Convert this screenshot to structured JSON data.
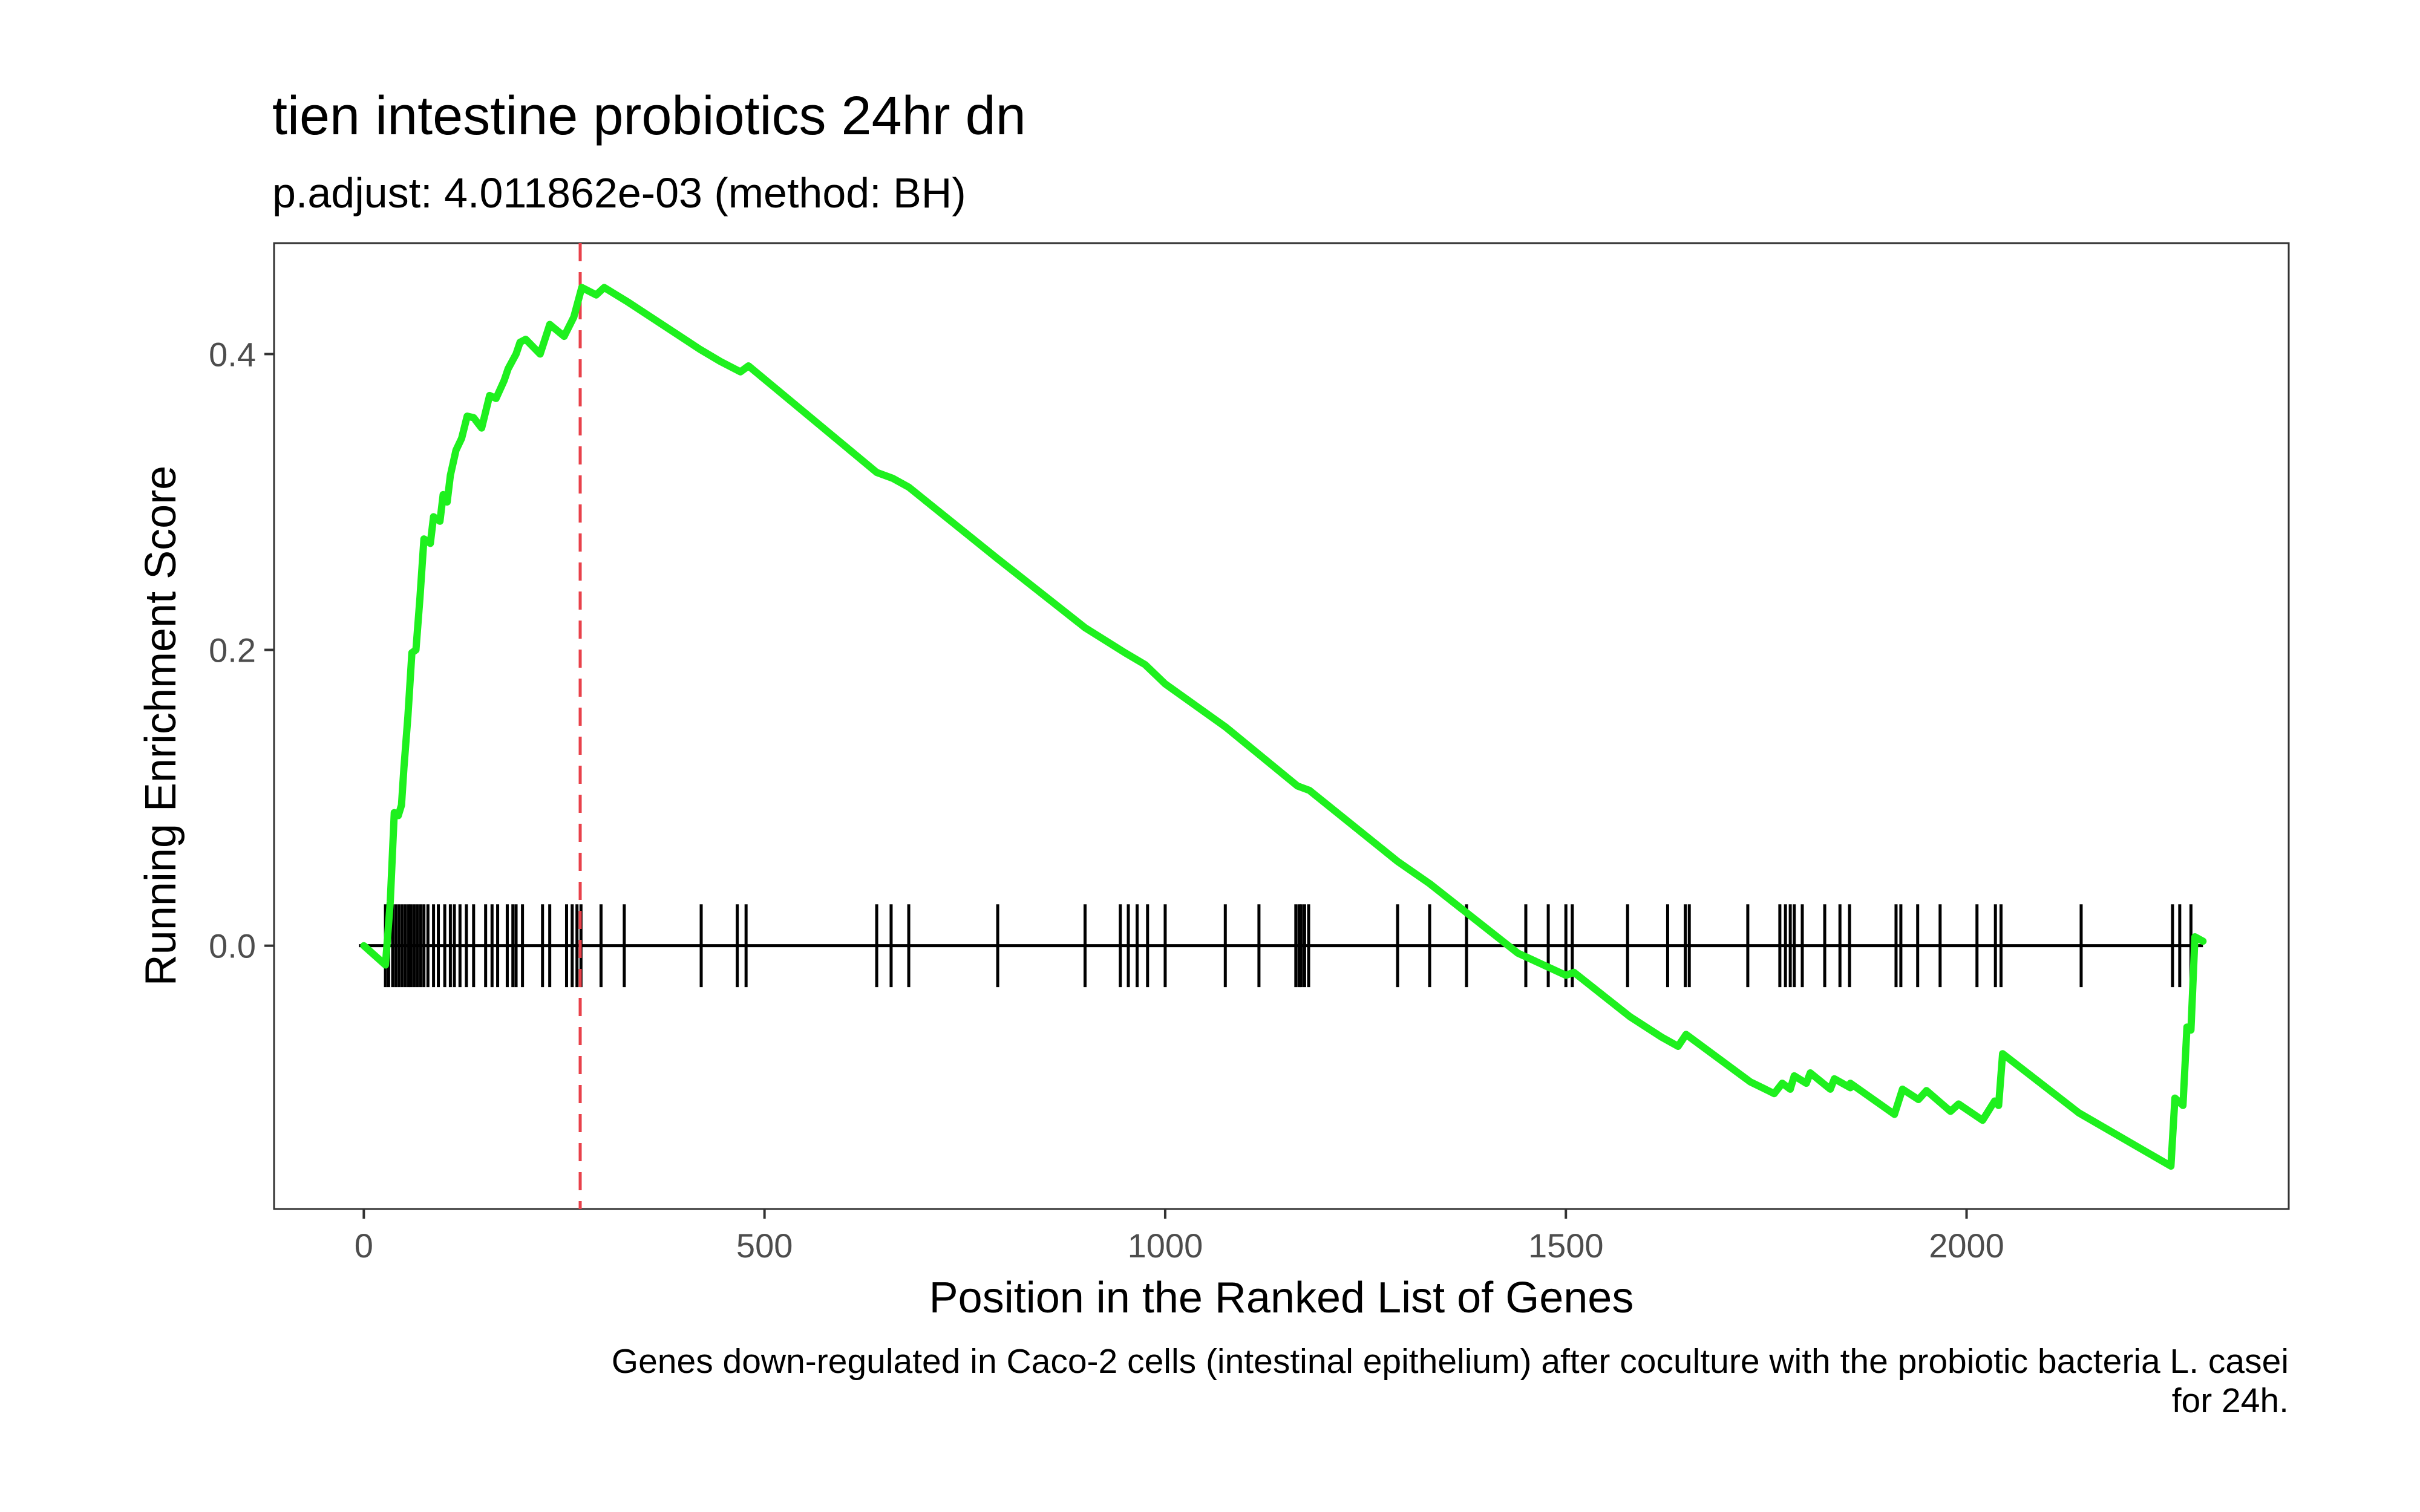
{
  "chart_data": {
    "type": "line",
    "title": "tien intestine probiotics 24hr dn",
    "subtitle": "p.adjust: 4.011862e-03 (method: BH)",
    "xlabel": "Position in the Ranked List of Genes",
    "ylabel": "Running Enrichment Score",
    "caption_lines": [
      "Genes down-regulated in Caco-2 cells (intestinal epithelium) after coculture with the probiotic bacteria L. casei",
      "for 24h."
    ],
    "xlim": [
      -112,
      2402
    ],
    "ylim": [
      -0.178,
      0.475
    ],
    "x_ticks": [
      0,
      500,
      1000,
      1500,
      2000
    ],
    "y_ticks": [
      0.0,
      0.2,
      0.4
    ],
    "x_tick_labels": [
      "0",
      "500",
      "1000",
      "1500",
      "2000"
    ],
    "y_tick_labels": [
      "0.0",
      "0.2",
      "0.4"
    ],
    "grid": false,
    "colors": {
      "curve": "#1EF01E",
      "peak_line": "#E8414A",
      "ticks": "#000000",
      "zero_line": "#000000"
    },
    "peak": {
      "x": 270,
      "y": 0.445
    },
    "series": [
      {
        "values_xy": [
          [
            0,
            0.0
          ],
          [
            27,
            -0.013
          ],
          [
            33,
            0.03
          ],
          [
            38,
            0.09
          ],
          [
            43,
            0.088
          ],
          [
            47,
            0.095
          ],
          [
            50,
            0.12
          ],
          [
            55,
            0.155
          ],
          [
            60,
            0.198
          ],
          [
            65,
            0.2
          ],
          [
            70,
            0.235
          ],
          [
            75,
            0.275
          ],
          [
            83,
            0.272
          ],
          [
            87,
            0.29
          ],
          [
            95,
            0.287
          ],
          [
            99,
            0.305
          ],
          [
            104,
            0.3
          ],
          [
            108,
            0.318
          ],
          [
            115,
            0.335
          ],
          [
            122,
            0.343
          ],
          [
            129,
            0.358
          ],
          [
            137,
            0.357
          ],
          [
            147,
            0.35
          ],
          [
            157,
            0.372
          ],
          [
            165,
            0.37
          ],
          [
            175,
            0.382
          ],
          [
            180,
            0.39
          ],
          [
            190,
            0.4
          ],
          [
            195,
            0.408
          ],
          [
            202,
            0.41
          ],
          [
            220,
            0.4
          ],
          [
            232,
            0.42
          ],
          [
            250,
            0.412
          ],
          [
            262,
            0.425
          ],
          [
            272,
            0.445
          ],
          [
            290,
            0.44
          ],
          [
            300,
            0.445
          ],
          [
            330,
            0.435
          ],
          [
            420,
            0.403
          ],
          [
            445,
            0.395
          ],
          [
            470,
            0.388
          ],
          [
            480,
            0.392
          ],
          [
            640,
            0.32
          ],
          [
            660,
            0.316
          ],
          [
            680,
            0.31
          ],
          [
            790,
            0.262
          ],
          [
            900,
            0.215
          ],
          [
            950,
            0.198
          ],
          [
            975,
            0.19
          ],
          [
            1000,
            0.177
          ],
          [
            1075,
            0.148
          ],
          [
            1165,
            0.108
          ],
          [
            1180,
            0.105
          ],
          [
            1290,
            0.057
          ],
          [
            1330,
            0.042
          ],
          [
            1440,
            -0.005
          ],
          [
            1500,
            -0.02
          ],
          [
            1510,
            -0.018
          ],
          [
            1580,
            -0.048
          ],
          [
            1620,
            -0.062
          ],
          [
            1640,
            -0.068
          ],
          [
            1650,
            -0.06
          ],
          [
            1730,
            -0.092
          ],
          [
            1760,
            -0.1
          ],
          [
            1770,
            -0.093
          ],
          [
            1780,
            -0.097
          ],
          [
            1785,
            -0.088
          ],
          [
            1800,
            -0.093
          ],
          [
            1805,
            -0.086
          ],
          [
            1830,
            -0.097
          ],
          [
            1835,
            -0.09
          ],
          [
            1855,
            -0.096
          ],
          [
            1855,
            -0.093
          ],
          [
            1910,
            -0.114
          ],
          [
            1920,
            -0.097
          ],
          [
            1940,
            -0.104
          ],
          [
            1950,
            -0.098
          ],
          [
            1980,
            -0.112
          ],
          [
            1990,
            -0.107
          ],
          [
            2020,
            -0.118
          ],
          [
            2035,
            -0.105
          ],
          [
            2040,
            -0.108
          ],
          [
            2045,
            -0.073
          ],
          [
            2140,
            -0.113
          ],
          [
            2255,
            -0.149
          ],
          [
            2260,
            -0.103
          ],
          [
            2270,
            -0.108
          ],
          [
            2275,
            -0.055
          ],
          [
            2280,
            -0.057
          ],
          [
            2285,
            0.006
          ],
          [
            2295,
            0.003
          ]
        ]
      }
    ],
    "hit_positions": [
      27,
      31,
      36,
      40,
      44,
      48,
      52,
      56,
      59,
      63,
      67,
      71,
      75,
      80,
      87,
      93,
      101,
      108,
      113,
      120,
      128,
      137,
      152,
      160,
      167,
      179,
      186,
      190,
      198,
      223,
      232,
      253,
      260,
      266,
      271,
      296,
      325,
      421,
      466,
      477,
      640,
      658,
      680,
      791,
      900,
      944,
      954,
      965,
      978,
      1000,
      1075,
      1117,
      1163,
      1167,
      1170,
      1174,
      1179,
      1290,
      1330,
      1376,
      1450,
      1478,
      1500,
      1508,
      1577,
      1627,
      1649,
      1654,
      1727,
      1767,
      1774,
      1780,
      1785,
      1795,
      1823,
      1842,
      1854,
      1912,
      1918,
      1939,
      1967,
      2013,
      2036,
      2043,
      2143,
      2257,
      2266,
      2280
    ]
  }
}
